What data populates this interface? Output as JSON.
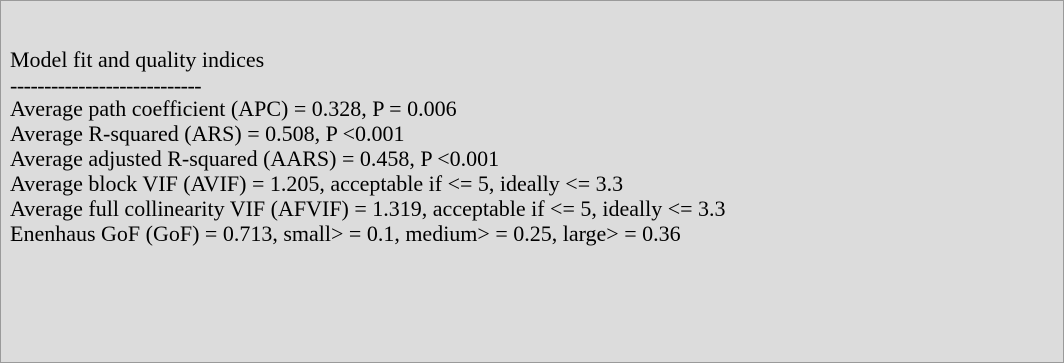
{
  "report": {
    "title": "Model fit and quality indices",
    "separator": "----------------------------",
    "lines": [
      "Average path coefficient (APC) = 0.328, P = 0.006",
      "Average R-squared (ARS) = 0.508, P <0.001",
      "Average adjusted R-squared (AARS) = 0.458, P <0.001",
      "Average block VIF (AVIF) = 1.205, acceptable if <= 5, ideally <= 3.3",
      "Average full collinearity VIF (AFVIF) = 1.319, acceptable if <= 5, ideally <= 3.3",
      "Enenhaus GoF (GoF) = 0.713, small> = 0.1, medium> = 0.25, large> = 0.36"
    ]
  },
  "colors": {
    "panel_background": "#dcdcdc",
    "panel_border": "#9a9a9a",
    "text": "#000000"
  }
}
